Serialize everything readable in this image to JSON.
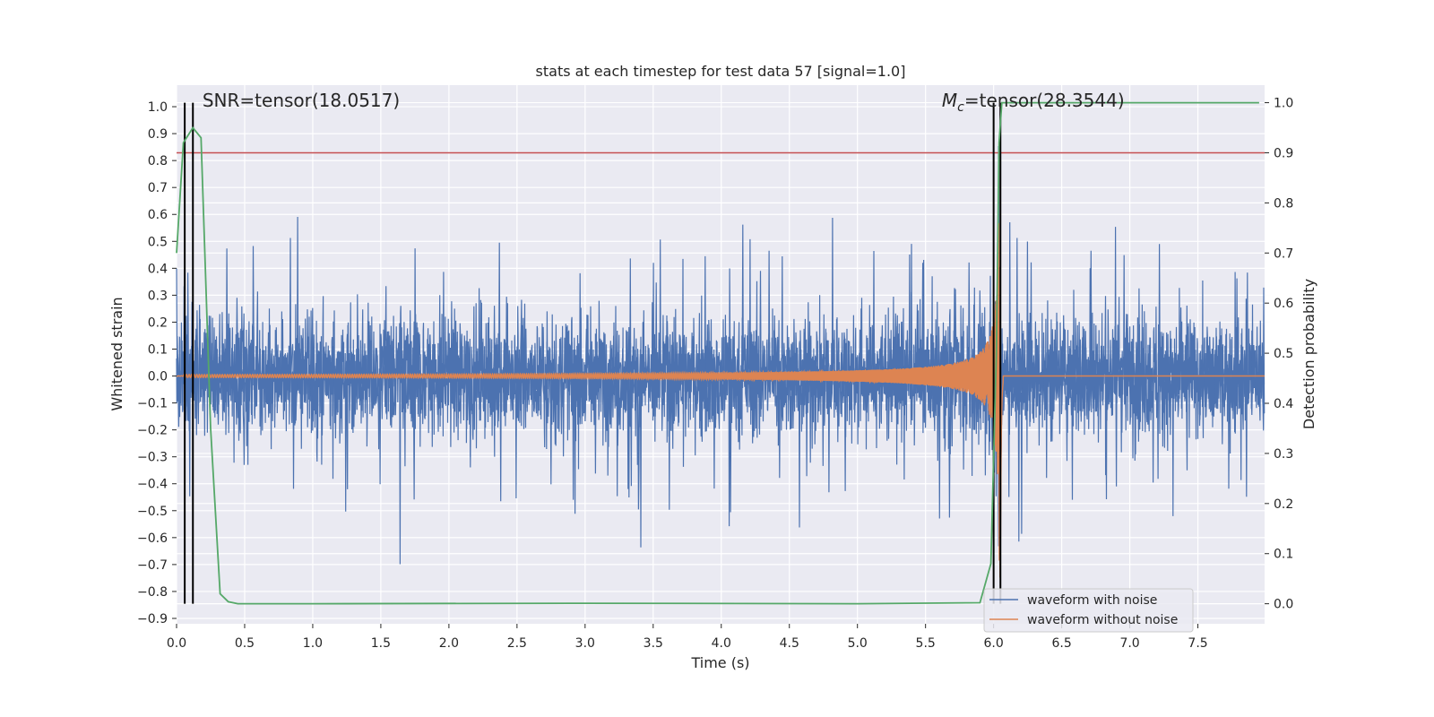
{
  "chart_data": {
    "type": "line",
    "title": "stats at each timestep for test data 57 [signal=1.0]",
    "xlabel": "Time (s)",
    "ylabel_left": "Whitened strain",
    "ylabel_right": "Detection probability",
    "xlim": [
      0,
      7.99
    ],
    "ylim_left": [
      -0.92,
      1.08
    ],
    "ylim_right": [
      -0.04,
      1.035
    ],
    "x_ticks": [
      0.0,
      0.5,
      1.0,
      1.5,
      2.0,
      2.5,
      3.0,
      3.5,
      4.0,
      4.5,
      5.0,
      5.5,
      6.0,
      6.5,
      7.0,
      7.5
    ],
    "x_tick_labels": [
      "0.0",
      "0.5",
      "1.0",
      "1.5",
      "2.0",
      "2.5",
      "3.0",
      "3.5",
      "4.0",
      "4.5",
      "5.0",
      "5.5",
      "6.0",
      "6.5",
      "7.0",
      "7.5"
    ],
    "y_left_ticks": [
      1.0,
      0.9,
      0.8,
      0.7,
      0.6,
      0.5,
      0.4,
      0.3,
      0.2,
      0.1,
      0.0,
      -0.1,
      -0.2,
      -0.3,
      -0.4,
      -0.5,
      -0.6,
      -0.7,
      -0.8,
      -0.9
    ],
    "y_left_tick_labels": [
      "1.0",
      "0.9",
      "0.8",
      "0.7",
      "0.6",
      "0.5",
      "0.4",
      "0.3",
      "0.2",
      "0.1",
      "0.0",
      "−0.1",
      "−0.2",
      "−0.3",
      "−0.4",
      "−0.5",
      "−0.6",
      "−0.7",
      "−0.8",
      "−0.9"
    ],
    "y_right_ticks": [
      1.0,
      0.9,
      0.8,
      0.7,
      0.6,
      0.5,
      0.4,
      0.3,
      0.2,
      0.1,
      0.0
    ],
    "y_right_tick_labels": [
      "1.0",
      "0.9",
      "0.8",
      "0.7",
      "0.6",
      "0.5",
      "0.4",
      "0.3",
      "0.2",
      "0.1",
      "0.0"
    ],
    "series": [
      {
        "name": "waveform with noise",
        "axis": "left",
        "color": "#4c72b0",
        "description_values": {
          "noise_envelope_typical": 0.3,
          "noise_peak_max": 0.6,
          "noise_peak_min": -0.62
        }
      },
      {
        "name": "waveform without noise",
        "axis": "left",
        "color": "#dd8452",
        "chirp": {
          "merger_time": 6.05,
          "start_time": 0.0,
          "peak_amplitude": 0.75,
          "early_amplitude": 0.005
        }
      },
      {
        "name": "detection probability",
        "axis": "right",
        "color": "#55a868",
        "x": [
          0.0,
          0.05,
          0.12,
          0.18,
          0.25,
          0.32,
          0.38,
          0.45,
          1.0,
          3.0,
          5.0,
          5.9,
          5.98,
          6.02,
          6.04,
          6.06,
          6.5,
          7.0,
          7.95
        ],
        "values": [
          0.7,
          0.92,
          0.95,
          0.93,
          0.35,
          0.02,
          0.004,
          0.0,
          0.0,
          0.001,
          0.0,
          0.002,
          0.08,
          0.5,
          0.92,
          1.0,
          1.0,
          1.0,
          1.0
        ]
      }
    ],
    "threshold_line": {
      "axis": "right",
      "value": 0.9,
      "color": "#c44e52"
    },
    "vertical_markers": [
      0.06,
      0.12,
      6.0,
      6.05
    ],
    "vertical_marker_color": "#000000",
    "annotations": [
      {
        "text": "SNR=tensor(18.0517)",
        "x": 0.19,
        "y": 1.0
      },
      {
        "text_sym": "M",
        "text_sub": "c",
        "text_rest": "=tensor(28.3544)",
        "x": 5.62,
        "y": 1.0
      }
    ],
    "legend": {
      "location": "lower-right",
      "entries": [
        {
          "label": "waveform with noise",
          "color": "#4c72b0"
        },
        {
          "label": "waveform without noise",
          "color": "#dd8452"
        }
      ]
    },
    "style": {
      "plot_bg": "#eaeaf2",
      "grid": true,
      "grid_color": "#ffffff"
    }
  }
}
